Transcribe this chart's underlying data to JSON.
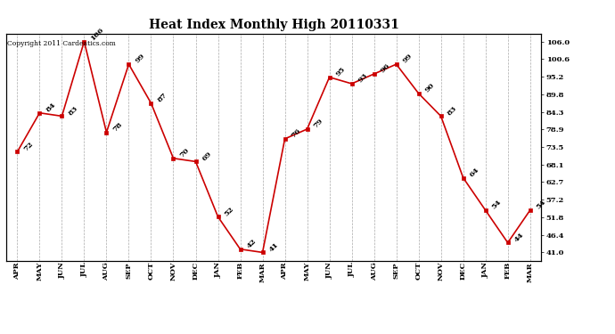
{
  "title": "Heat Index Monthly High 20110331",
  "copyright": "Copyright 2011 Cardeatics.com",
  "x_labels": [
    "APR",
    "MAY",
    "JUN",
    "JUL",
    "AUG",
    "SEP",
    "OCT",
    "NOV",
    "DEC",
    "JAN",
    "FEB",
    "MAR",
    "APR",
    "MAY",
    "JUN",
    "JUL",
    "AUG",
    "SEP",
    "OCT",
    "NOV",
    "DEC",
    "JAN",
    "FEB",
    "MAR"
  ],
  "y_values": [
    72,
    84,
    83,
    106,
    78,
    99,
    87,
    70,
    69,
    52,
    42,
    41,
    76,
    79,
    95,
    93,
    96,
    99,
    90,
    83,
    64,
    54,
    44,
    54
  ],
  "y_ticks": [
    41.0,
    46.4,
    51.8,
    57.2,
    62.7,
    68.1,
    73.5,
    78.9,
    84.3,
    89.8,
    95.2,
    100.6,
    106.0
  ],
  "ylim": [
    38.5,
    108.5
  ],
  "line_color": "#cc0000",
  "marker_color": "#cc0000",
  "bg_color": "#ffffff",
  "grid_color": "#aaaaaa",
  "title_fontsize": 10,
  "annot_fontsize": 6,
  "tick_fontsize": 6,
  "copyright_fontsize": 5.5
}
